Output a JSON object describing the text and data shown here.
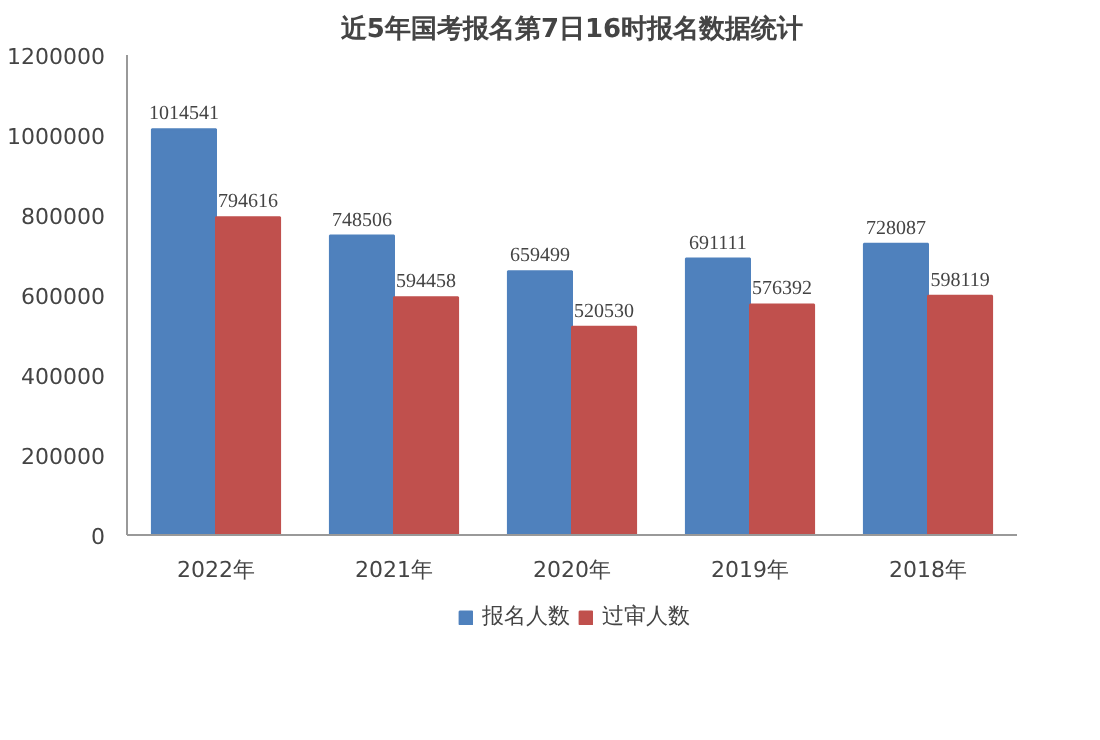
{
  "chart_data": {
    "type": "bar",
    "title": "近5年国考报名第7日16时报名数据统计",
    "categories": [
      "2022年",
      "2021年",
      "2020年",
      "2019年",
      "2018年"
    ],
    "series": [
      {
        "name": "报名人数",
        "color": "#4f81bd",
        "values": [
          1014541,
          748506,
          659499,
          691111,
          728087
        ]
      },
      {
        "name": "过审人数",
        "color": "#c0504d",
        "values": [
          794616,
          594458,
          520530,
          576392,
          598119
        ]
      }
    ],
    "ylim": [
      0,
      1200000
    ],
    "yticks": [
      0,
      200000,
      400000,
      600000,
      800000,
      1000000,
      1200000
    ],
    "grid": false,
    "legend": "bottom",
    "data_labels": true
  }
}
